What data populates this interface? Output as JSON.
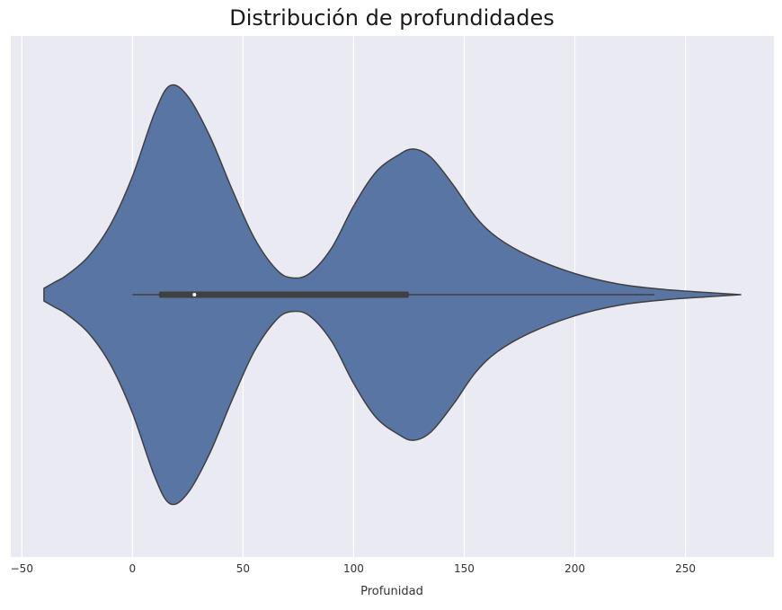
{
  "chart_data": {
    "type": "violin",
    "orientation": "horizontal",
    "title": "Distribución de profundidades",
    "xlabel": "Profunidad",
    "ylabel": "",
    "xlim": [
      -55,
      290
    ],
    "xticks": [
      -50,
      0,
      50,
      100,
      150,
      200,
      250
    ],
    "xtick_labels": [
      "−50",
      "0",
      "50",
      "100",
      "150",
      "200",
      "250"
    ],
    "grid": true,
    "colors": {
      "background": "#eaeaf2",
      "grid": "#ffffff",
      "violin_fill": "#5975a4",
      "violin_edge": "#404040",
      "box": "#404040",
      "median": "#ffffff"
    },
    "density": {
      "x": [
        -40,
        -35,
        -30,
        -20,
        -10,
        0,
        10,
        17,
        25,
        35,
        45,
        55,
        65,
        72,
        80,
        90,
        100,
        110,
        120,
        127,
        135,
        145,
        155,
        165,
        180,
        200,
        220,
        240,
        260,
        275
      ],
      "y": [
        0.03,
        0.06,
        0.09,
        0.18,
        0.33,
        0.56,
        0.86,
        0.99,
        0.94,
        0.75,
        0.5,
        0.27,
        0.12,
        0.08,
        0.1,
        0.22,
        0.42,
        0.58,
        0.66,
        0.69,
        0.65,
        0.52,
        0.37,
        0.27,
        0.18,
        0.1,
        0.05,
        0.025,
        0.01,
        0.0
      ]
    },
    "box": {
      "whisker_low": 0,
      "q1": 12,
      "median": 28,
      "q3": 125,
      "whisker_high": 236
    }
  }
}
